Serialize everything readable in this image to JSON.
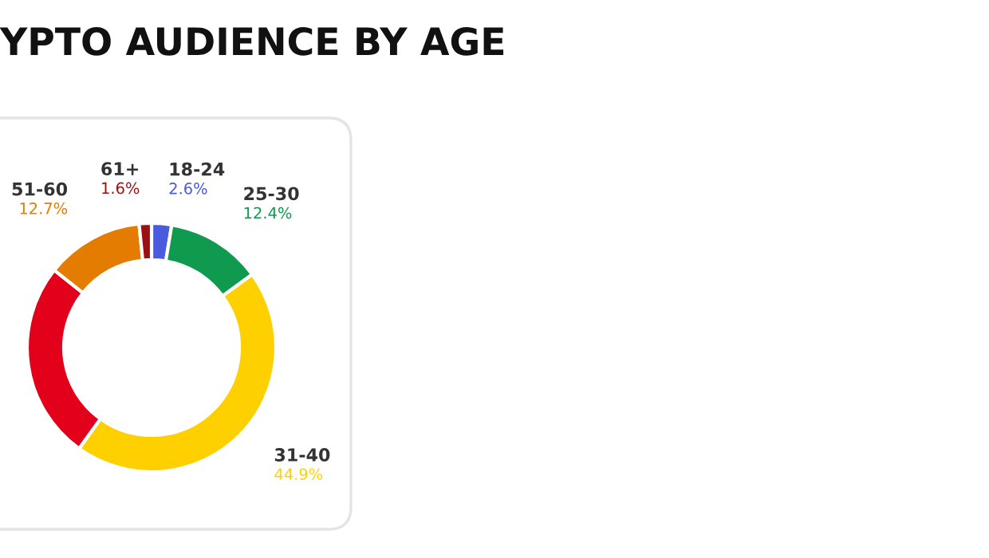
{
  "chart_data": {
    "type": "donut",
    "title": "YPTO AUDIENCE BY AGE",
    "categories": [
      "18-24",
      "25-30",
      "31-40",
      null,
      "51-60",
      "61+"
    ],
    "values": [
      2.6,
      12.4,
      44.9,
      25.8,
      12.7,
      1.6
    ],
    "colors": [
      "#4a5be0",
      "#0f9a4f",
      "#ffd000",
      "#e3001b",
      "#e37c00",
      "#9b1010"
    ],
    "value_labels": [
      "2.6%",
      "12.4%",
      "44.9%",
      null,
      "12.7%",
      "1.6%"
    ]
  }
}
